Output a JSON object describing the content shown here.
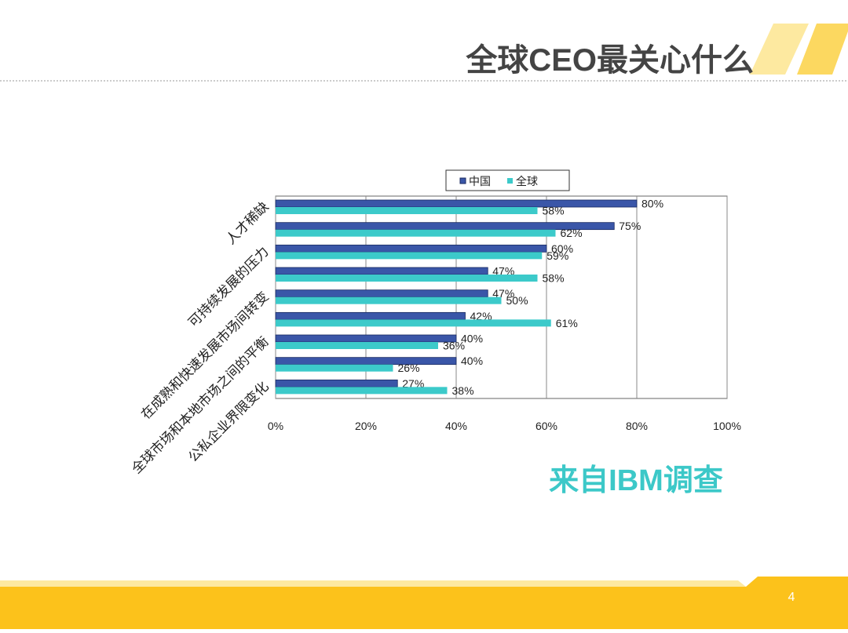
{
  "page": {
    "title": "全球CEO最关心什么",
    "annotation": "来自IBM调查",
    "page_number": "4"
  },
  "chart_data": {
    "type": "hbar",
    "categories": [
      "人才稀缺",
      null,
      "可持续发展的压力",
      null,
      "在成熟和快速发展市场间转变",
      null,
      "全球市场和本地市场之间的平衡",
      null,
      "公私企业界限变化"
    ],
    "series": [
      {
        "name": "中国",
        "color": "#3a56a8",
        "values": [
          80,
          75,
          60,
          47,
          47,
          42,
          40,
          40,
          27
        ],
        "value_labels": [
          "80%",
          "75%",
          "60%",
          "47%",
          "47%",
          "42%",
          "40%",
          "40%",
          "27%"
        ]
      },
      {
        "name": "全球",
        "color": "#3ccaca",
        "values": [
          58,
          62,
          59,
          58,
          50,
          61,
          36,
          26,
          38
        ],
        "value_labels": [
          "58%",
          "62%",
          "59%",
          "58%",
          "50%",
          "61%",
          "36%",
          "26%",
          "38%"
        ]
      }
    ],
    "xlim": [
      0,
      100
    ],
    "xticks": [
      {
        "value": 0,
        "label": "0%"
      },
      {
        "value": 20,
        "label": "20%"
      },
      {
        "value": 40,
        "label": "40%"
      },
      {
        "value": 60,
        "label": "60%"
      },
      {
        "value": 80,
        "label": "80%"
      },
      {
        "value": 100,
        "label": "100%"
      }
    ],
    "grid": true,
    "legend": "top"
  }
}
